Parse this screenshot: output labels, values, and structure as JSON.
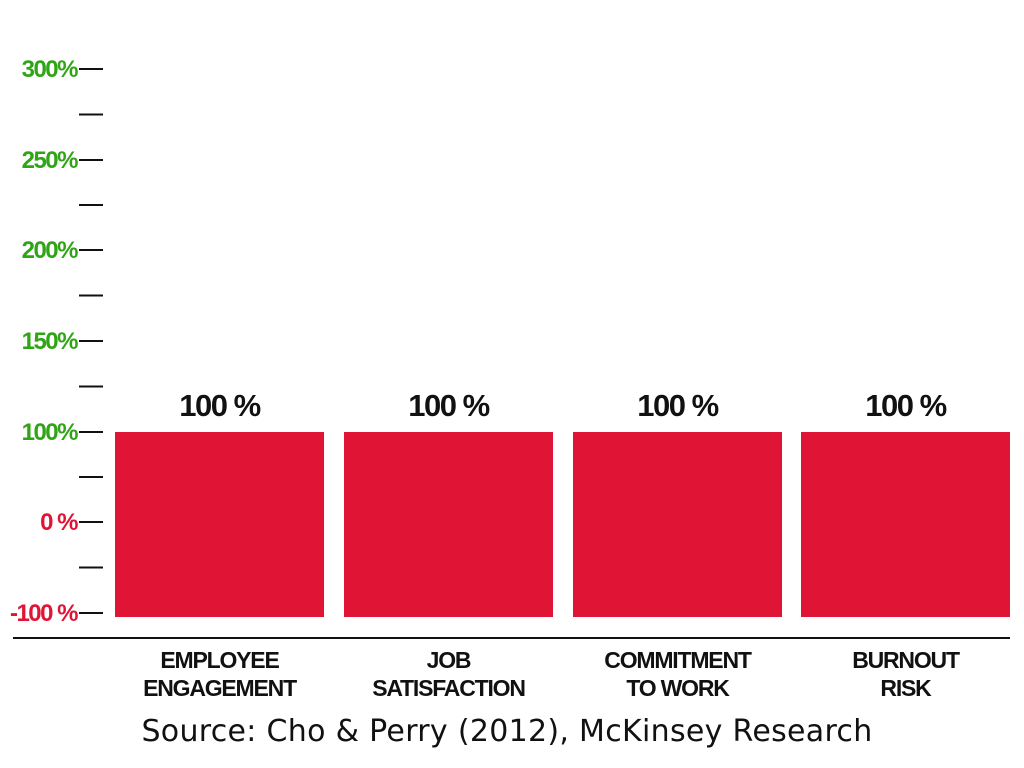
{
  "colors": {
    "bar": "#e01535",
    "positive_tick": "#2fa516",
    "negative_tick": "#e01535",
    "axis": "#111111"
  },
  "chart_data": {
    "type": "bar",
    "categories": [
      [
        "EMPLOYEE",
        "ENGAGEMENT"
      ],
      [
        "JOB",
        "SATISFACTION"
      ],
      [
        "COMMITMENT",
        "TO WORK"
      ],
      [
        "BURNOUT",
        "RISK"
      ]
    ],
    "values": [
      100,
      100,
      100,
      100
    ],
    "data_labels": [
      "100 %",
      "100 %",
      "100 %",
      "100 %"
    ],
    "yticks": [
      {
        "value": 300,
        "label": "300%"
      },
      {
        "value": 250,
        "label": "250%"
      },
      {
        "value": 200,
        "label": "200%"
      },
      {
        "value": 150,
        "label": "150%"
      },
      {
        "value": 100,
        "label": "100%"
      },
      {
        "value": 0,
        "label": "0 %"
      },
      {
        "value": -100,
        "label": "-100 %"
      }
    ],
    "minor_ticks": [
      275,
      225,
      175,
      125,
      50,
      -50
    ],
    "ylim": [
      -100,
      300
    ],
    "grid": false,
    "legend": "none"
  },
  "source": "Source: Cho & Perry (2012), McKinsey Research"
}
